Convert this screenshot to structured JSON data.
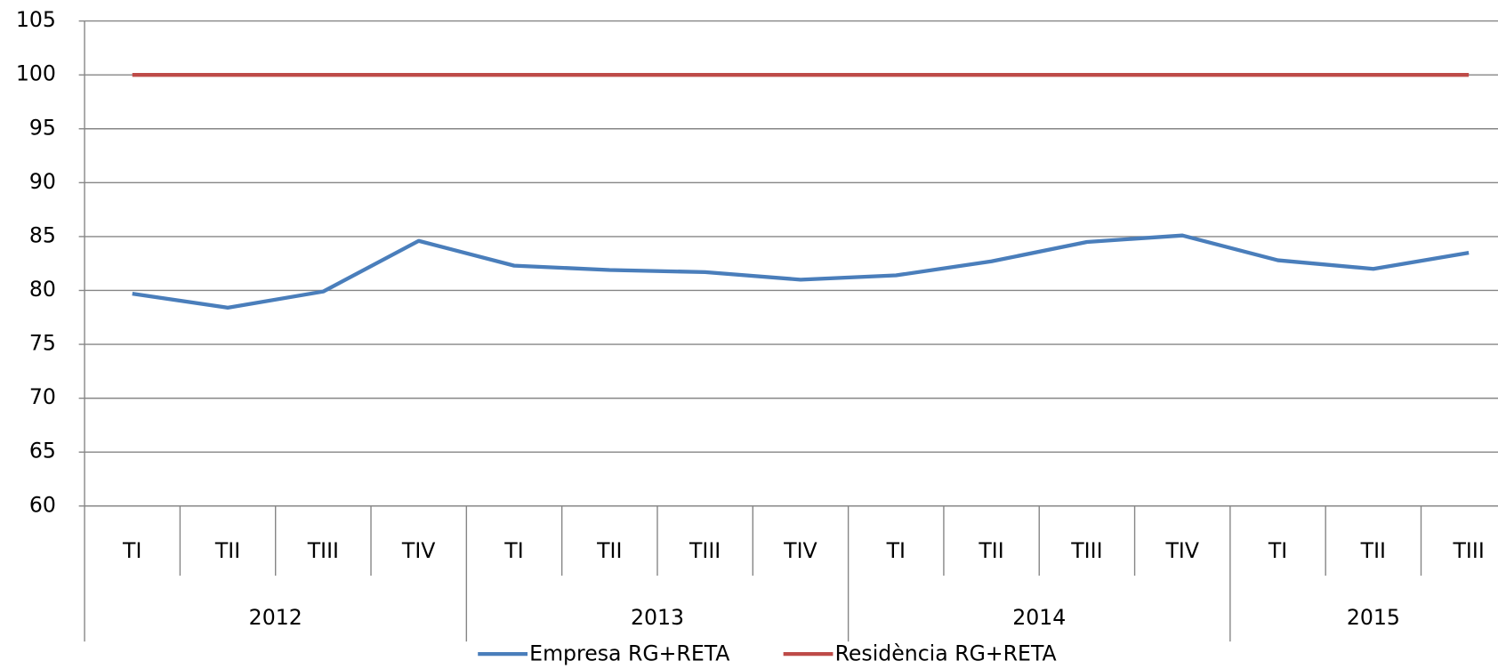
{
  "chart_data": {
    "type": "line",
    "categories": [
      "TI",
      "TII",
      "TIII",
      "TIV",
      "TI",
      "TII",
      "TIII",
      "TIV",
      "TI",
      "TII",
      "TIII",
      "TIV",
      "TI",
      "TII",
      "TIII"
    ],
    "groups": [
      "2012",
      "2013",
      "2014",
      "2015"
    ],
    "series": [
      {
        "name": "Empresa RG+RETA",
        "color": "#4a7ebb",
        "values": [
          79.7,
          78.4,
          79.9,
          84.6,
          82.3,
          81.9,
          81.7,
          81.0,
          81.4,
          82.7,
          84.5,
          85.1,
          82.8,
          82.0,
          83.5
        ]
      },
      {
        "name": "Residència RG+RETA",
        "color": "#be4b48",
        "values": [
          100,
          100,
          100,
          100,
          100,
          100,
          100,
          100,
          100,
          100,
          100,
          100,
          100,
          100,
          100
        ]
      }
    ],
    "ylim": [
      60,
      105
    ],
    "yticks": [
      60,
      65,
      70,
      75,
      80,
      85,
      90,
      95,
      100,
      105
    ],
    "grid": true,
    "legend": "bottom"
  }
}
